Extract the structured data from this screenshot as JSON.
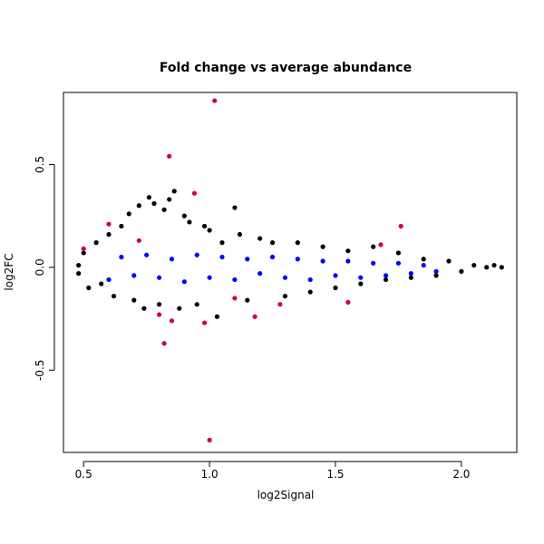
{
  "chart_data": {
    "type": "scatter",
    "title": "Fold change vs average abundance",
    "xlabel": "log2Signal",
    "ylabel": "log2FC",
    "xlim": [
      0.42,
      2.22
    ],
    "ylim": [
      -0.9,
      0.85
    ],
    "xticks": [
      0.5,
      1.0,
      1.5,
      2.0
    ],
    "xtick_labels": [
      "0.5",
      "1.0",
      "1.5",
      "2.0"
    ],
    "yticks": [
      -0.5,
      0.0,
      0.5
    ],
    "ytick_labels": [
      "-0.5",
      "0.0",
      "0.5"
    ],
    "grid": false,
    "legend": "none",
    "colors": {
      "black": "#000000",
      "blue": "#0000ff",
      "red": "#cd0a2a"
    },
    "series": [
      {
        "color": "#000000",
        "points": [
          [
            0.48,
            0.01
          ],
          [
            0.48,
            -0.03
          ],
          [
            0.5,
            0.07
          ],
          [
            0.52,
            -0.1
          ],
          [
            0.55,
            0.12
          ],
          [
            0.57,
            -0.08
          ],
          [
            0.6,
            0.16
          ],
          [
            0.62,
            -0.14
          ],
          [
            0.65,
            0.2
          ],
          [
            0.68,
            0.26
          ],
          [
            0.7,
            -0.16
          ],
          [
            0.72,
            0.3
          ],
          [
            0.74,
            -0.2
          ],
          [
            0.76,
            0.34
          ],
          [
            0.78,
            0.31
          ],
          [
            0.8,
            -0.18
          ],
          [
            0.82,
            0.28
          ],
          [
            0.84,
            0.33
          ],
          [
            0.86,
            0.37
          ],
          [
            0.88,
            -0.2
          ],
          [
            0.9,
            0.25
          ],
          [
            0.92,
            0.22
          ],
          [
            0.95,
            -0.18
          ],
          [
            0.98,
            0.2
          ],
          [
            1.0,
            0.18
          ],
          [
            1.03,
            -0.24
          ],
          [
            1.05,
            0.12
          ],
          [
            1.1,
            0.29
          ],
          [
            1.12,
            0.16
          ],
          [
            1.15,
            -0.16
          ],
          [
            1.2,
            0.14
          ],
          [
            1.25,
            0.12
          ],
          [
            1.3,
            -0.14
          ],
          [
            1.35,
            0.12
          ],
          [
            1.4,
            -0.12
          ],
          [
            1.45,
            0.1
          ],
          [
            1.5,
            -0.1
          ],
          [
            1.55,
            0.08
          ],
          [
            1.6,
            -0.08
          ],
          [
            1.65,
            0.1
          ],
          [
            1.7,
            -0.06
          ],
          [
            1.75,
            0.07
          ],
          [
            1.8,
            -0.05
          ],
          [
            1.85,
            0.04
          ],
          [
            1.9,
            -0.04
          ],
          [
            1.95,
            0.03
          ],
          [
            2.0,
            -0.02
          ],
          [
            2.05,
            0.01
          ],
          [
            2.1,
            0.0
          ],
          [
            2.13,
            0.01
          ],
          [
            2.16,
            0.0
          ]
        ]
      },
      {
        "color": "#0000ff",
        "points": [
          [
            0.6,
            -0.06
          ],
          [
            0.65,
            0.05
          ],
          [
            0.7,
            -0.04
          ],
          [
            0.75,
            0.06
          ],
          [
            0.8,
            -0.05
          ],
          [
            0.85,
            0.04
          ],
          [
            0.9,
            -0.07
          ],
          [
            0.95,
            0.06
          ],
          [
            1.0,
            -0.05
          ],
          [
            1.05,
            0.05
          ],
          [
            1.1,
            -0.06
          ],
          [
            1.15,
            0.04
          ],
          [
            1.2,
            -0.03
          ],
          [
            1.25,
            0.05
          ],
          [
            1.3,
            -0.05
          ],
          [
            1.35,
            0.04
          ],
          [
            1.4,
            -0.06
          ],
          [
            1.45,
            0.03
          ],
          [
            1.5,
            -0.04
          ],
          [
            1.55,
            0.03
          ],
          [
            1.6,
            -0.05
          ],
          [
            1.65,
            0.02
          ],
          [
            1.7,
            -0.04
          ],
          [
            1.75,
            0.02
          ],
          [
            1.8,
            -0.03
          ],
          [
            1.85,
            0.01
          ],
          [
            1.9,
            -0.02
          ]
        ]
      },
      {
        "color": "#cd0a2a",
        "points": [
          [
            1.02,
            0.81
          ],
          [
            0.84,
            0.54
          ],
          [
            0.94,
            0.36
          ],
          [
            1.76,
            0.2
          ],
          [
            0.6,
            0.21
          ],
          [
            0.5,
            0.09
          ],
          [
            0.8,
            -0.23
          ],
          [
            0.82,
            -0.37
          ],
          [
            0.85,
            -0.26
          ],
          [
            0.98,
            -0.27
          ],
          [
            1.0,
            -0.84
          ],
          [
            1.18,
            -0.24
          ],
          [
            1.28,
            -0.18
          ],
          [
            1.55,
            -0.17
          ],
          [
            1.68,
            0.11
          ],
          [
            0.72,
            0.13
          ],
          [
            1.1,
            -0.15
          ]
        ]
      }
    ]
  }
}
